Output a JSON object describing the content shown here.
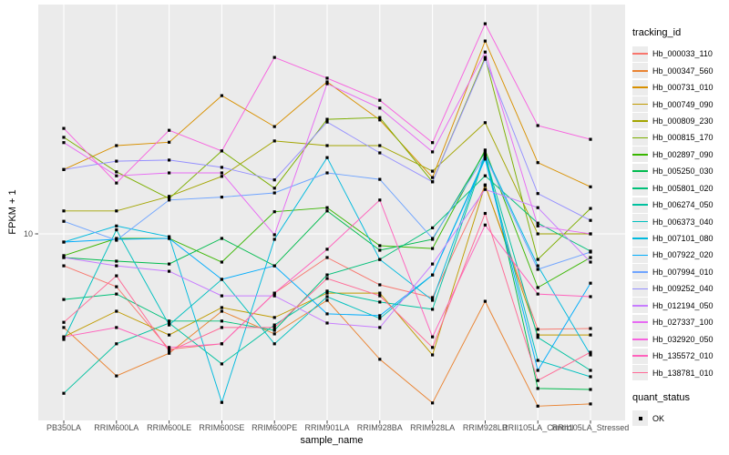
{
  "figure": {
    "background": "#FFFFFF",
    "panel_background": "#EBEBEB",
    "gridline_color": "#FFFFFF",
    "axis_text_color": "#4D4D4D",
    "point_color": "#000000"
  },
  "axes": {
    "x_title": "sample_name",
    "y_title": "FPKM + 1",
    "y_tick_label": "10"
  },
  "legend": {
    "tracking_title": "tracking_id",
    "quant_title": "quant_status",
    "quant_entries": [
      {
        "label": "OK",
        "marker": "black-square"
      }
    ]
  },
  "chart_data": {
    "type": "line",
    "title": "",
    "xlabel": "sample_name",
    "ylabel": "FPKM + 1",
    "y_scale": "log10",
    "y_ticks": [
      10
    ],
    "ylim_approx": [
      1.8,
      90
    ],
    "grid": "major",
    "legend_position": "right",
    "point_shape": "filled-square",
    "x_categories": [
      "PB350LA",
      "RRIM600LA",
      "RRIM600LE",
      "RRIM600SE",
      "RRIM600PE",
      "RRIM901LA",
      "RRIM928BA",
      "RRIM928LA",
      "RRIM928LB",
      "RRII105LA_Control",
      "RRII105LA_Stressed"
    ],
    "series": [
      {
        "name": "Hb_000033_110",
        "color": "#F8766D",
        "values": [
          7.33,
          5.98,
          3.25,
          3.43,
          5.62,
          7.94,
          6.09,
          5.38,
          16.0,
          3.95,
          3.98
        ]
      },
      {
        "name": "Hb_000347_560",
        "color": "#EA8331",
        "values": [
          4.02,
          2.51,
          3.13,
          4.71,
          3.78,
          5.24,
          2.95,
          1.93,
          5.19,
          1.87,
          1.91
        ]
      },
      {
        "name": "Hb_000731_010",
        "color": "#D89000",
        "values": [
          18.7,
          23.6,
          24.4,
          38.4,
          28.4,
          43.9,
          30.3,
          17.3,
          65.3,
          20.0,
          15.8
        ]
      },
      {
        "name": "Hb_000749_090",
        "color": "#C09B00",
        "values": [
          3.67,
          4.71,
          3.74,
          4.88,
          4.43,
          5.62,
          5.62,
          3.08,
          16.1,
          3.74,
          3.74
        ]
      },
      {
        "name": "Hb_000809_230",
        "color": "#A3A500",
        "values": [
          12.5,
          12.5,
          14.4,
          17.5,
          24.7,
          23.6,
          23.6,
          18.4,
          29.5,
          10.0,
          10.0
        ]
      },
      {
        "name": "Hb_000815_170",
        "color": "#7CAE00",
        "values": [
          25.6,
          18.3,
          14.1,
          22.4,
          15.6,
          30.5,
          31.0,
          16.6,
          55.7,
          7.8,
          12.8
        ]
      },
      {
        "name": "Hb_002897_090",
        "color": "#39B600",
        "values": [
          8.09,
          9.57,
          9.57,
          7.6,
          12.4,
          12.9,
          8.91,
          8.67,
          22.6,
          5.93,
          7.94
        ]
      },
      {
        "name": "Hb_005250_030",
        "color": "#00BB4E",
        "values": [
          7.94,
          7.67,
          7.46,
          9.57,
          7.33,
          12.5,
          8.53,
          9.48,
          22.2,
          2.22,
          2.2
        ]
      },
      {
        "name": "Hb_005801_020",
        "color": "#00C079",
        "values": [
          5.28,
          5.57,
          4.28,
          4.28,
          3.91,
          6.71,
          7.8,
          10.6,
          17.6,
          11.1,
          8.45
        ]
      },
      {
        "name": "Hb_006274_050",
        "color": "#00C19F",
        "values": [
          2.12,
          3.43,
          4.2,
          2.82,
          4.12,
          5.73,
          5.15,
          4.8,
          21.4,
          3.65,
          2.65
        ]
      },
      {
        "name": "Hb_006373_040",
        "color": "#00C0BF",
        "values": [
          3.58,
          10.4,
          4.12,
          6.42,
          3.43,
          5.43,
          4.39,
          6.71,
          21.0,
          2.92,
          2.49
        ]
      },
      {
        "name": "Hb_007101_080",
        "color": "#00BADE",
        "values": [
          9.23,
          10.8,
          9.73,
          1.94,
          9.48,
          21.0,
          7.8,
          5.24,
          21.8,
          7.33,
          3.08
        ]
      },
      {
        "name": "Hb_007922_020",
        "color": "#00ACFC",
        "values": [
          9.23,
          9.48,
          9.57,
          6.42,
          7.33,
          4.59,
          4.51,
          6.71,
          20.7,
          2.65,
          6.19
        ]
      },
      {
        "name": "Hb_007994_010",
        "color": "#6FA4FF",
        "values": [
          11.3,
          9.4,
          13.9,
          14.3,
          14.9,
          18.1,
          17.0,
          9.57,
          21.4,
          7.08,
          8.38
        ]
      },
      {
        "name": "Hb_009252_040",
        "color": "#9590FF",
        "values": [
          18.7,
          20.3,
          20.5,
          19.1,
          16.9,
          29.7,
          22.0,
          16.6,
          54.7,
          14.8,
          11.4
        ]
      },
      {
        "name": "Hb_012194_050",
        "color": "#C77CFF",
        "values": [
          7.94,
          7.33,
          6.95,
          5.47,
          5.47,
          4.2,
          4.02,
          7.46,
          15.4,
          12.9,
          7.6
        ]
      },
      {
        "name": "Hb_027337_100",
        "color": "#E76BF3",
        "values": [
          24.3,
          17.6,
          18.1,
          18.1,
          9.91,
          43.1,
          34.0,
          22.2,
          58.7,
          10.8,
          10.0
        ]
      },
      {
        "name": "Hb_032920_050",
        "color": "#F763DF",
        "values": [
          27.9,
          16.4,
          27.4,
          22.4,
          55.7,
          45.5,
          36.7,
          24.3,
          77.3,
          28.7,
          25.1
        ]
      },
      {
        "name": "Hb_135572_010",
        "color": "#FF62BC",
        "values": [
          3.67,
          4.02,
          3.31,
          3.43,
          5.62,
          8.61,
          13.9,
          3.67,
          10.9,
          5.57,
          5.43
        ]
      },
      {
        "name": "Hb_138781_010",
        "color": "#FF6A96",
        "values": [
          4.23,
          6.65,
          3.19,
          4.02,
          4.02,
          6.48,
          5.47,
          3.31,
          12.2,
          2.4,
          3.16
        ]
      }
    ]
  }
}
